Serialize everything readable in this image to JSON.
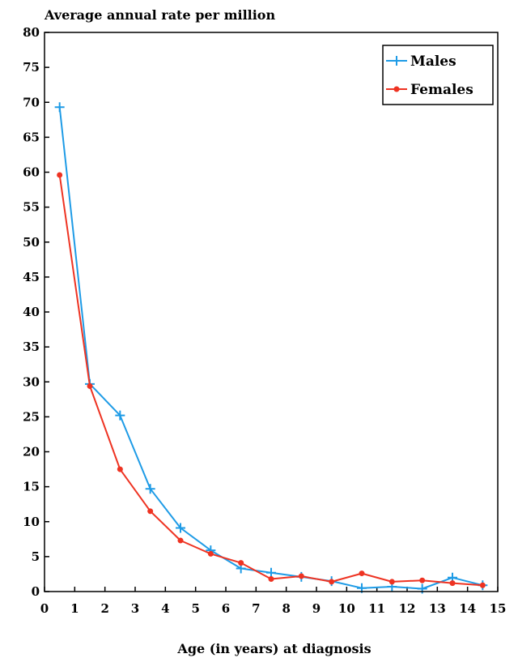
{
  "chart_data": {
    "type": "line",
    "title": "Average annual rate per million",
    "xlabel": "Age (in years) at diagnosis",
    "ylabel": "",
    "xlim": [
      0,
      15
    ],
    "ylim": [
      0,
      80
    ],
    "x_ticks": [
      "0",
      "1",
      "2",
      "3",
      "4",
      "5",
      "6",
      "7",
      "8",
      "9",
      "10",
      "11",
      "12",
      "13",
      "14",
      "15"
    ],
    "y_ticks": [
      "0",
      "5",
      "10",
      "15",
      "20",
      "25",
      "30",
      "35",
      "40",
      "45",
      "50",
      "55",
      "60",
      "65",
      "70",
      "75",
      "80"
    ],
    "grid": false,
    "legend_position": "top-right",
    "x": [
      0.5,
      1.5,
      2.5,
      3.5,
      4.5,
      5.5,
      6.5,
      7.5,
      8.5,
      9.5,
      10.5,
      11.5,
      12.5,
      13.5,
      14.5
    ],
    "series": [
      {
        "name": "Males",
        "color": "#1e9be6",
        "marker": "plus",
        "values": [
          69.3,
          29.7,
          25.2,
          14.7,
          9.1,
          5.9,
          3.3,
          2.7,
          2.1,
          1.5,
          0.5,
          0.7,
          0.4,
          2.0,
          0.9
        ]
      },
      {
        "name": "Females",
        "color": "#ee3322",
        "marker": "dot",
        "values": [
          59.6,
          29.4,
          17.5,
          11.5,
          7.3,
          5.4,
          4.1,
          1.8,
          2.2,
          1.4,
          2.6,
          1.4,
          1.6,
          1.2,
          0.9
        ]
      }
    ]
  }
}
